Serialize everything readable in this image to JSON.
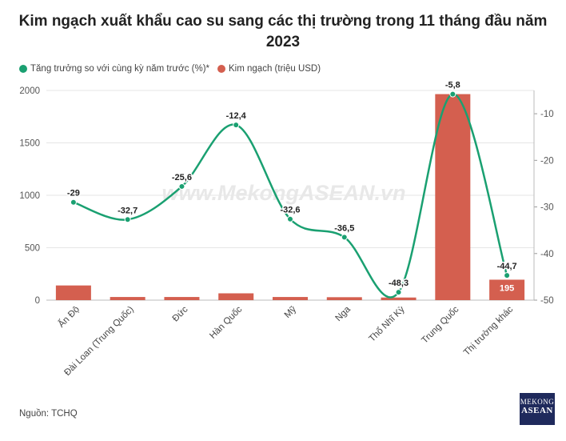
{
  "header": {
    "title_line1": "Kim ngạch xuất khẩu cao su sang các thị trường trong 11 tháng đầu năm",
    "title_line2": "2023"
  },
  "legend": {
    "growth_label": "Tăng trưởng so với cùng kỳ năm trước (%)*",
    "value_label": "Kim ngạch (triệu USD)"
  },
  "colors": {
    "line": "#1aa071",
    "bar": "#d45f4f",
    "grid": "#e6e6e6",
    "logo": "#1f2a5c"
  },
  "watermark": "www.MekongASEAN.vn",
  "footer": {
    "source": "Nguồn: TCHQ"
  },
  "logo": {
    "line1": "MEKONG",
    "line2": "ASEAN"
  },
  "chart_data": {
    "type": "bar",
    "categories": [
      "Ấn Độ",
      "Đài Loan (Trung Quốc)",
      "Đức",
      "Hàn Quốc",
      "Mỹ",
      "Nga",
      "Thổ Nhĩ Kỳ",
      "Trung Quốc",
      "Thị trường khác"
    ],
    "series": [
      {
        "name": "Kim ngạch (triệu USD)",
        "type": "bar",
        "axis": "left",
        "values": [
          140,
          30,
          30,
          65,
          30,
          28,
          25,
          1965,
          195
        ],
        "data_labels": [
          "",
          "",
          "",
          "",
          "",
          "",
          "",
          "",
          "195"
        ]
      },
      {
        "name": "Tăng trưởng so với cùng kỳ năm trước (%)*",
        "type": "line",
        "axis": "right",
        "values": [
          -29,
          -32.7,
          -25.6,
          -12.4,
          -32.6,
          -36.5,
          -48.3,
          -5.8,
          -44.7
        ],
        "data_labels": [
          "-29",
          "-32,7",
          "-25,6",
          "-12,4",
          "-32,6",
          "-36,5",
          "-48,3",
          "-5,8",
          "-44,7"
        ]
      }
    ],
    "y_left": {
      "ylim": [
        0,
        2000
      ],
      "ticks": [
        "0",
        "500",
        "1000",
        "1500",
        "2000"
      ]
    },
    "y_right": {
      "ylim": [
        -50,
        -5
      ],
      "ticks": [
        "-10",
        "-20",
        "-30",
        "-40",
        "-50"
      ]
    },
    "grid": true,
    "legend_position": "top-left"
  }
}
